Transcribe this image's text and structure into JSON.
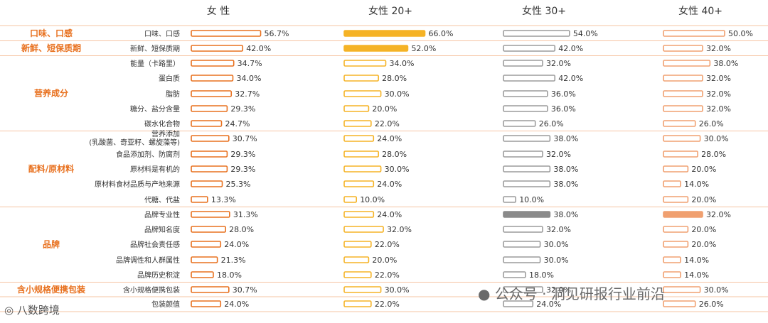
{
  "chart_data": {
    "type": "bar",
    "orientation": "horizontal",
    "series": [
      {
        "name": "女 性",
        "values": [
          56.7,
          42.0,
          34.7,
          34.0,
          32.7,
          29.3,
          24.7,
          30.7,
          29.3,
          29.3,
          25.3,
          13.3,
          31.3,
          28.0,
          24.0,
          21.3,
          18.0,
          30.7,
          24.0
        ]
      },
      {
        "name": "女性 20+",
        "values": [
          66.0,
          52.0,
          34.0,
          28.0,
          30.0,
          20.0,
          22.0,
          24.0,
          28.0,
          30.0,
          24.0,
          10.0,
          24.0,
          32.0,
          22.0,
          20.0,
          22.0,
          30.0,
          22.0
        ]
      },
      {
        "name": "女性 30+",
        "values": [
          54.0,
          42.0,
          32.0,
          42.0,
          36.0,
          36.0,
          26.0,
          38.0,
          32.0,
          38.0,
          38.0,
          10.0,
          38.0,
          32.0,
          30.0,
          30.0,
          18.0,
          32.0,
          24.0
        ]
      },
      {
        "name": "女性 40+",
        "values": [
          50.0,
          32.0,
          38.0,
          32.0,
          32.0,
          32.0,
          26.0,
          30.0,
          28.0,
          20.0,
          14.0,
          20.0,
          32.0,
          20.0,
          20.0,
          14.0,
          14.0,
          30.0,
          26.0
        ]
      }
    ],
    "categories": [
      "口味、口感",
      "新鲜、短保质期",
      "能量（卡路里）",
      "蛋白质",
      "脂肪",
      "糖分、盐分含量",
      "碳水化合物",
      "营养添加\n(乳酸菌、奇亚籽、螺旋藻等)",
      "食品添加剂、防腐剂",
      "原材料是有机的",
      "原材料食材品质与产地来源",
      "代糖、代盐",
      "品牌专业性",
      "品牌知名度",
      "品牌社会责任感",
      "品牌调性和人群属性",
      "品牌历史积淀",
      "含小规格便携包装",
      "包装颜值"
    ],
    "groups": [
      {
        "label": "口味、口感",
        "rows": [
          0,
          0
        ]
      },
      {
        "label": "新鲜、短保质期",
        "rows": [
          1,
          1
        ]
      },
      {
        "label": "营养成分",
        "rows": [
          2,
          6
        ]
      },
      {
        "label": "配料/原材料",
        "rows": [
          7,
          11
        ]
      },
      {
        "label": "品牌",
        "rows": [
          12,
          16
        ]
      },
      {
        "label": "含小规格便携包装",
        "rows": [
          17,
          17
        ]
      },
      {
        "label": "",
        "rows": [
          18,
          18
        ]
      }
    ],
    "value_suffix": "%",
    "highlights": [
      {
        "series": 1,
        "rows": [
          0,
          1
        ],
        "color": "#f5b326"
      },
      {
        "series": 2,
        "rows": [
          12
        ],
        "color": "#8a8a8a"
      },
      {
        "series": 3,
        "rows": [
          12
        ],
        "color": "#f0a070"
      }
    ],
    "colors": {
      "outline": [
        "#e8711f",
        "#f5b326",
        "#9c9c9c",
        "#f0a070"
      ],
      "group_text": "#e8711f",
      "group_line": "#e8711f"
    }
  },
  "watermark": {
    "text": "公众号 · 洞见研报行业前沿",
    "logo_text": "八数跨境"
  }
}
